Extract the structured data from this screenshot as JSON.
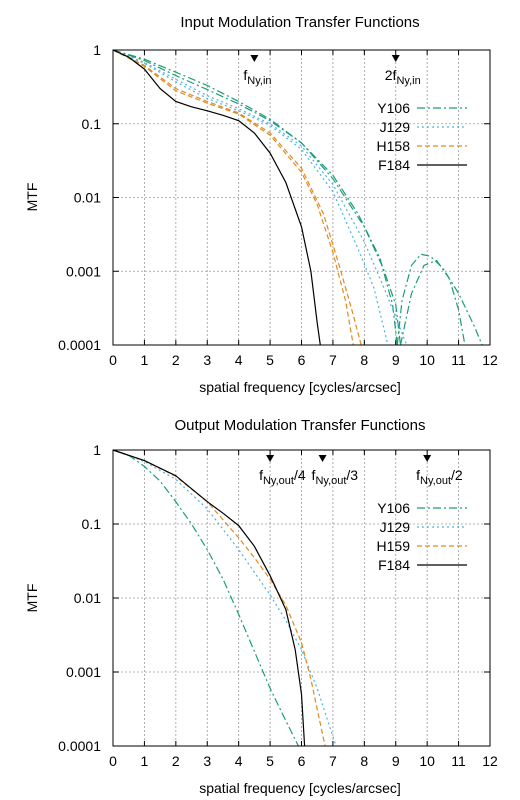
{
  "chart_data": [
    {
      "type": "line",
      "title": "Input Modulation Transfer Functions",
      "xlabel": "spatial frequency [cycles/arcsec]",
      "ylabel": "MTF",
      "xlim": [
        0,
        12
      ],
      "ylim": [
        0.0001,
        1
      ],
      "yscale": "log",
      "grid": true,
      "legend_position": "right-middle",
      "x_ticks": [
        "0",
        "1",
        "2",
        "3",
        "4",
        "5",
        "6",
        "7",
        "8",
        "9",
        "10",
        "11",
        "12"
      ],
      "y_ticks": [
        "1",
        "0.1",
        "0.01",
        "0.001",
        "0.0001"
      ],
      "markers": [
        {
          "x": 4.5,
          "label": "f",
          "sub": "Ny,in",
          "suffix": ""
        },
        {
          "x": 9.0,
          "label": "2f",
          "sub": "Ny,in",
          "suffix": ""
        }
      ],
      "series": [
        {
          "name": "Y106",
          "color": "#1a9e77",
          "dash": "8,3,2,3",
          "segments": [
            [
              [
                0,
                1
              ],
              [
                1,
                0.72
              ],
              [
                2,
                0.45
              ],
              [
                3,
                0.29
              ],
              [
                4,
                0.185
              ],
              [
                5,
                0.11
              ],
              [
                6,
                0.055
              ],
              [
                7,
                0.02
              ],
              [
                7.8,
                0.006
              ],
              [
                8.5,
                0.0015
              ],
              [
                8.9,
                0.00035
              ],
              [
                9.05,
                0.0001
              ]
            ],
            [
              [
                9.05,
                0.0001
              ],
              [
                9.2,
                0.0004
              ],
              [
                9.5,
                0.0012
              ],
              [
                9.8,
                0.0017
              ],
              [
                10.1,
                0.0016
              ],
              [
                10.5,
                0.0011
              ],
              [
                11,
                0.0005
              ],
              [
                11.5,
                0.00018
              ],
              [
                11.75,
                0.0001
              ]
            ],
            [
              [
                0,
                1
              ],
              [
                1,
                0.75
              ],
              [
                2,
                0.5
              ],
              [
                3,
                0.33
              ],
              [
                4,
                0.2
              ],
              [
                5,
                0.115
              ],
              [
                6,
                0.055
              ],
              [
                7,
                0.018
              ],
              [
                8,
                0.004
              ],
              [
                8.6,
                0.0011
              ],
              [
                9,
                0.00035
              ],
              [
                9.15,
                0.0001
              ]
            ],
            [
              [
                9.15,
                0.0001
              ],
              [
                9.5,
                0.0005
              ],
              [
                9.9,
                0.0012
              ],
              [
                10.3,
                0.0014
              ],
              [
                10.7,
                0.0008
              ],
              [
                11,
                0.0003
              ],
              [
                11.2,
                0.0001
              ]
            ]
          ]
        },
        {
          "name": "J129",
          "color": "#4ab3e6",
          "dash": "2,3",
          "segments": [
            [
              [
                0,
                1
              ],
              [
                1,
                0.66
              ],
              [
                2,
                0.37
              ],
              [
                3,
                0.22
              ],
              [
                4,
                0.15
              ],
              [
                5,
                0.095
              ],
              [
                6,
                0.045
              ],
              [
                7,
                0.012
              ],
              [
                7.8,
                0.002
              ],
              [
                8.3,
                0.0006
              ],
              [
                8.75,
                0.0001
              ]
            ],
            [
              [
                0,
                1
              ],
              [
                1,
                0.68
              ],
              [
                2,
                0.4
              ],
              [
                3,
                0.24
              ],
              [
                4,
                0.16
              ],
              [
                5,
                0.1
              ],
              [
                6,
                0.05
              ],
              [
                7,
                0.015
              ],
              [
                8,
                0.0025
              ],
              [
                8.7,
                0.0005
              ],
              [
                9.35,
                0.0001
              ]
            ]
          ]
        },
        {
          "name": "H158",
          "color": "#e08a1e",
          "dash": "5,3",
          "segments": [
            [
              [
                0,
                1
              ],
              [
                1,
                0.6
              ],
              [
                2,
                0.28
              ],
              [
                3,
                0.19
              ],
              [
                4,
                0.135
              ],
              [
                5,
                0.07
              ],
              [
                6,
                0.022
              ],
              [
                6.5,
                0.008
              ],
              [
                7,
                0.0018
              ],
              [
                7.4,
                0.0004
              ],
              [
                7.65,
                0.0001
              ]
            ],
            [
              [
                0,
                1
              ],
              [
                1,
                0.62
              ],
              [
                2,
                0.3
              ],
              [
                3,
                0.2
              ],
              [
                4,
                0.14
              ],
              [
                5,
                0.075
              ],
              [
                6,
                0.025
              ],
              [
                6.7,
                0.006
              ],
              [
                7.2,
                0.0012
              ],
              [
                7.6,
                0.0003
              ],
              [
                7.9,
                0.0001
              ]
            ]
          ]
        },
        {
          "name": "F184",
          "color": "#000000",
          "dash": "",
          "segments": [
            [
              [
                0,
                1
              ],
              [
                0.5,
                0.8
              ],
              [
                1,
                0.55
              ],
              [
                1.5,
                0.3
              ],
              [
                2,
                0.2
              ],
              [
                2.5,
                0.17
              ],
              [
                3,
                0.15
              ],
              [
                3.5,
                0.13
              ],
              [
                4,
                0.11
              ],
              [
                4.5,
                0.075
              ],
              [
                5,
                0.04
              ],
              [
                5.5,
                0.016
              ],
              [
                6,
                0.004
              ],
              [
                6.3,
                0.001
              ],
              [
                6.5,
                0.0002
              ],
              [
                6.6,
                0.0001
              ]
            ]
          ]
        }
      ]
    },
    {
      "type": "line",
      "title": "Output Modulation Transfer Functions",
      "xlabel": "spatial frequency [cycles/arcsec]",
      "ylabel": "MTF",
      "xlim": [
        0,
        12
      ],
      "ylim": [
        0.0001,
        1
      ],
      "yscale": "log",
      "grid": true,
      "legend_position": "right-middle",
      "x_ticks": [
        "0",
        "1",
        "2",
        "3",
        "4",
        "5",
        "6",
        "7",
        "8",
        "9",
        "10",
        "11",
        "12"
      ],
      "y_ticks": [
        "1",
        "0.1",
        "0.01",
        "0.001",
        "0.0001"
      ],
      "markers": [
        {
          "x": 5.0,
          "label": "f",
          "sub": "Ny,out",
          "suffix": "/4"
        },
        {
          "x": 6.67,
          "label": "f",
          "sub": "Ny,out",
          "suffix": "/3"
        },
        {
          "x": 10.0,
          "label": "f",
          "sub": "Ny,out",
          "suffix": "/2"
        }
      ],
      "series": [
        {
          "name": "Y106",
          "color": "#1a9e77",
          "dash": "8,3,2,3",
          "segments": [
            [
              [
                0,
                1
              ],
              [
                0.5,
                0.85
              ],
              [
                1,
                0.6
              ],
              [
                1.5,
                0.38
              ],
              [
                2,
                0.2
              ],
              [
                2.5,
                0.1
              ],
              [
                3,
                0.045
              ],
              [
                3.5,
                0.018
              ],
              [
                4,
                0.006
              ],
              [
                4.5,
                0.0019
              ],
              [
                5,
                0.0006
              ],
              [
                5.5,
                0.00022
              ],
              [
                5.9,
                0.0001
              ]
            ]
          ]
        },
        {
          "name": "J129",
          "color": "#4ab3e6",
          "dash": "2,3",
          "segments": [
            [
              [
                0,
                1
              ],
              [
                1,
                0.7
              ],
              [
                2,
                0.4
              ],
              [
                3,
                0.16
              ],
              [
                4,
                0.045
              ],
              [
                5,
                0.011
              ],
              [
                5.5,
                0.005
              ],
              [
                6,
                0.002
              ],
              [
                6.5,
                0.0006
              ],
              [
                6.9,
                0.00018
              ],
              [
                7.1,
                0.0001
              ]
            ]
          ]
        },
        {
          "name": "H159",
          "color": "#e08a1e",
          "dash": "5,3",
          "segments": [
            [
              [
                0,
                1
              ],
              [
                1,
                0.72
              ],
              [
                2,
                0.44
              ],
              [
                3,
                0.2
              ],
              [
                4,
                0.065
              ],
              [
                4.5,
                0.035
              ],
              [
                5,
                0.018
              ],
              [
                5.5,
                0.008
              ],
              [
                6,
                0.0025
              ],
              [
                6.3,
                0.0008
              ],
              [
                6.6,
                0.0002
              ],
              [
                6.75,
                0.0001
              ]
            ]
          ]
        },
        {
          "name": "F184",
          "color": "#000000",
          "dash": "",
          "segments": [
            [
              [
                0,
                1
              ],
              [
                1,
                0.72
              ],
              [
                2,
                0.45
              ],
              [
                2.5,
                0.3
              ],
              [
                3,
                0.2
              ],
              [
                3.5,
                0.14
              ],
              [
                4,
                0.095
              ],
              [
                4.5,
                0.05
              ],
              [
                5,
                0.02
              ],
              [
                5.5,
                0.007
              ],
              [
                5.8,
                0.002
              ],
              [
                6,
                0.0005
              ],
              [
                6.1,
                0.0001
              ]
            ]
          ]
        }
      ]
    }
  ]
}
